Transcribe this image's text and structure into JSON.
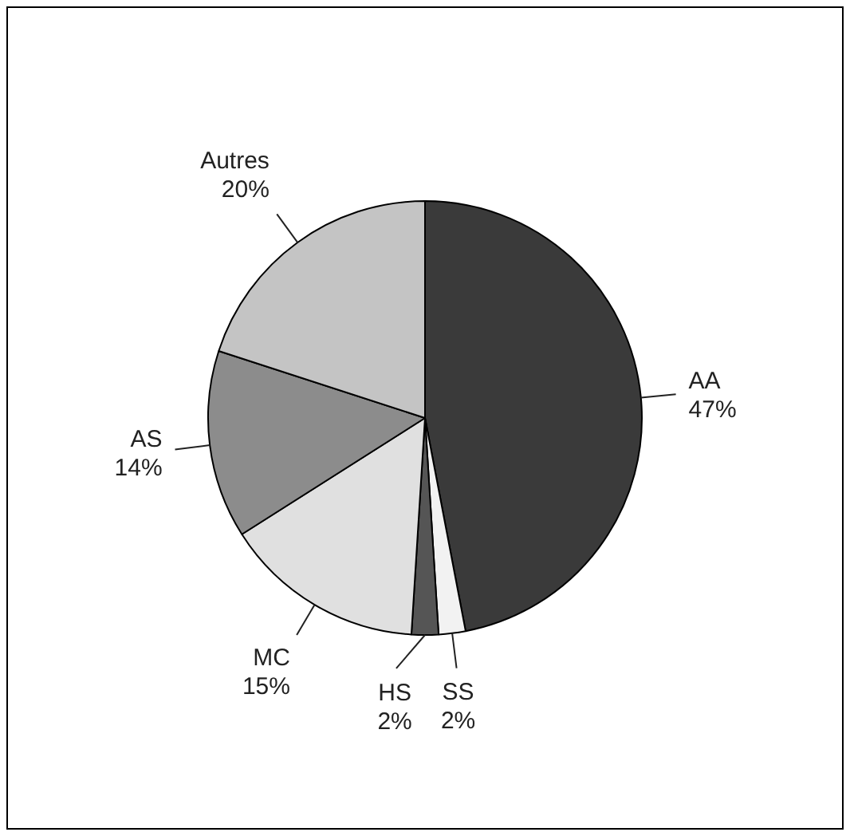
{
  "chart_data": {
    "type": "pie",
    "categories": [
      "AA",
      "SS",
      "HS",
      "MC",
      "AS",
      "Autres"
    ],
    "values": [
      47,
      2,
      2,
      15,
      14,
      20
    ],
    "colors": [
      "#3a3a3a",
      "#f2f2f2",
      "#555555",
      "#e0e0e0",
      "#8c8c8c",
      "#c4c4c4"
    ],
    "value_labels": [
      "47%",
      "2%",
      "2%",
      "15%",
      "14%",
      "20%"
    ],
    "legend": false
  }
}
